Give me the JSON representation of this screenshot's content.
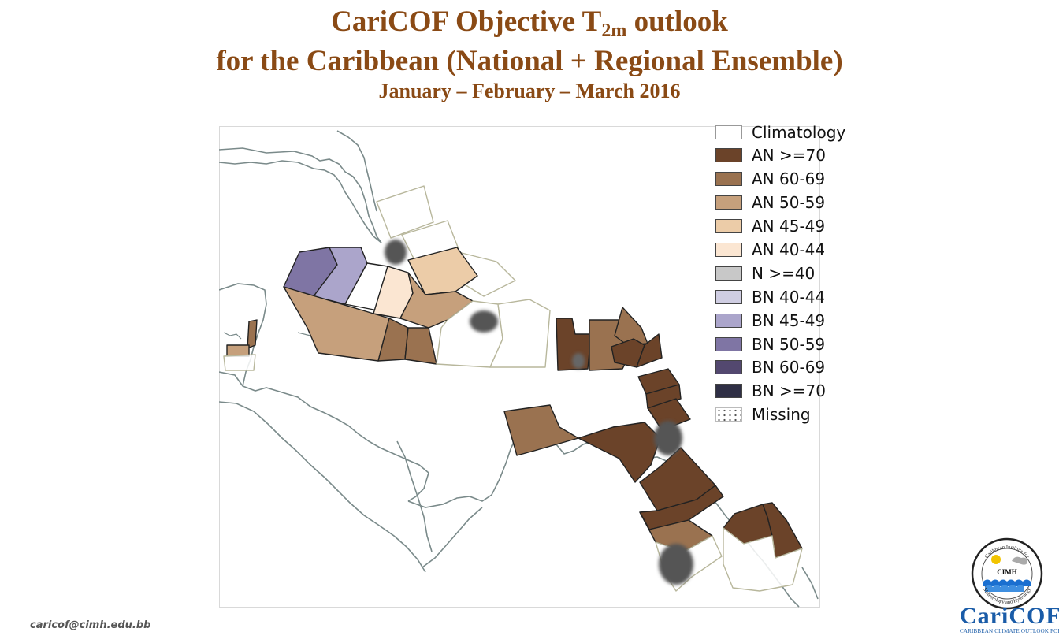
{
  "header": {
    "title_main": "CariCOF Objective T",
    "title_sub": "2m",
    "title_end": " outlook",
    "title_line2": "for the Caribbean (National + Regional Ensemble)",
    "period": "January – February – March 2016"
  },
  "legend": {
    "items": [
      {
        "label": "Climatology",
        "color": "#ffffff",
        "pattern": "none"
      },
      {
        "label": "AN >=70",
        "color": "#6b4329",
        "pattern": "none"
      },
      {
        "label": "AN 60-69",
        "color": "#9a7250",
        "pattern": "none"
      },
      {
        "label": "AN 50-59",
        "color": "#c6a07c",
        "pattern": "none"
      },
      {
        "label": "AN 45-49",
        "color": "#eccca8",
        "pattern": "none"
      },
      {
        "label": "AN 40-44",
        "color": "#fbe6d2",
        "pattern": "none"
      },
      {
        "label": "N >=40",
        "color": "#c8c8c8",
        "pattern": "none"
      },
      {
        "label": "BN 40-44",
        "color": "#cfcde2",
        "pattern": "none"
      },
      {
        "label": "BN 45-49",
        "color": "#aba5cb",
        "pattern": "none"
      },
      {
        "label": "BN 50-59",
        "color": "#7f75a4",
        "pattern": "none"
      },
      {
        "label": "BN 60-69",
        "color": "#53486f",
        "pattern": "none"
      },
      {
        "label": "BN  >=70",
        "color": "#2f2f45",
        "pattern": "none"
      },
      {
        "label": "Missing",
        "color": "#ffffff",
        "pattern": "dots"
      }
    ]
  },
  "map": {
    "regions": [
      {
        "name": "bahamas-north",
        "category": "Climatology"
      },
      {
        "name": "bahamas-central",
        "category": "Climatology"
      },
      {
        "name": "bahamas-south",
        "category": "AN 45-49"
      },
      {
        "name": "turks-caicos",
        "category": "Climatology"
      },
      {
        "name": "cuba-west",
        "category": "BN 50-59"
      },
      {
        "name": "cuba-central",
        "category": "BN 45-49"
      },
      {
        "name": "cuba-east",
        "category": "Climatology"
      },
      {
        "name": "cuba-east-south",
        "category": "AN 40-44"
      },
      {
        "name": "haiti-north",
        "category": "AN 50-59"
      },
      {
        "name": "cayman-jamaica-sea",
        "category": "AN 50-59"
      },
      {
        "name": "jamaica-west",
        "category": "AN 60-69"
      },
      {
        "name": "jamaica-east",
        "category": "AN 60-69"
      },
      {
        "name": "dominican-republic",
        "category": "Climatology"
      },
      {
        "name": "puerto-rico",
        "category": "Climatology"
      },
      {
        "name": "virgin-islands",
        "category": "AN >=70"
      },
      {
        "name": "anguilla-antigua",
        "category": "AN 60-69"
      },
      {
        "name": "guadeloupe-dominica",
        "category": "AN 60-69"
      },
      {
        "name": "martinique",
        "category": "AN >=70"
      },
      {
        "name": "st-lucia",
        "category": "AN >=70"
      },
      {
        "name": "st-vincent",
        "category": "AN >=70"
      },
      {
        "name": "barbados",
        "category": "AN >=70"
      },
      {
        "name": "grenada",
        "category": "AN >=70"
      },
      {
        "name": "aruba-curacao-bonaire",
        "category": "AN 60-69"
      },
      {
        "name": "trinidad-tobago",
        "category": "AN >=70"
      },
      {
        "name": "venezuela-east",
        "category": "AN >=70"
      },
      {
        "name": "guyana-north",
        "category": "AN >=70"
      },
      {
        "name": "guyana-central",
        "category": "AN 60-69"
      },
      {
        "name": "guyana-south",
        "category": "Climatology"
      },
      {
        "name": "suriname-north",
        "category": "AN >=70"
      },
      {
        "name": "french-guiana",
        "category": "AN >=70"
      },
      {
        "name": "suriname-south",
        "category": "Climatology"
      },
      {
        "name": "belize-north",
        "category": "AN 60-69"
      },
      {
        "name": "belize-south",
        "category": "AN 50-59"
      },
      {
        "name": "belize-sea",
        "category": "Climatology"
      }
    ]
  },
  "footer": {
    "email": "caricof@cimh.edu.bb",
    "cimh_text": "CIMH",
    "cimh_ring_top": "Caribbean Institute for",
    "cimh_ring_bottom": "Meteorology and Hydrology",
    "caricof_name": "CariCOF",
    "caricof_tagline": "CARIBBEAN CLIMATE OUTLOOK FORUM"
  }
}
